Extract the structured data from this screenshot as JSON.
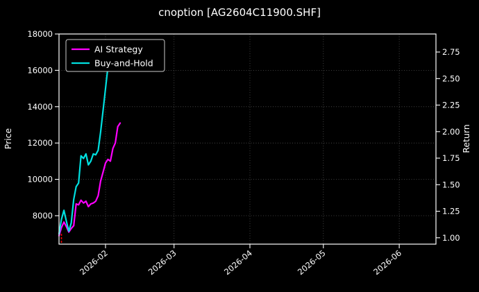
{
  "page": {
    "background": "#000000",
    "text_color": "#ffffff",
    "spine_color": "#ffffff",
    "grid_color": "#777777"
  },
  "chart_data": {
    "type": "line",
    "title": "cnoption [AG2604C11900.SHF]",
    "ylabel_left": "Price",
    "ylabel_right": "Return",
    "x_range": [
      "2026-01-13",
      "2026-06-16"
    ],
    "ylim_left": [
      6436,
      18000
    ],
    "ylim_right": [
      0.94,
      2.92
    ],
    "yticks_left": [
      8000,
      10000,
      12000,
      14000,
      16000,
      18000
    ],
    "yticks_right": [
      1.0,
      1.25,
      1.5,
      1.75,
      2.0,
      2.25,
      2.5,
      2.75
    ],
    "xticks": [
      {
        "date": "2026-02-01",
        "label": "2026-02"
      },
      {
        "date": "2026-03-01",
        "label": "2026-03"
      },
      {
        "date": "2026-04-01",
        "label": "2026-04"
      },
      {
        "date": "2026-05-01",
        "label": "2026-05"
      },
      {
        "date": "2026-06-01",
        "label": "2026-06"
      }
    ],
    "grid": true,
    "legend_position": "upper-left",
    "series": [
      {
        "name": "AI Strategy",
        "color": "#ff00ff",
        "points": [
          [
            "2026-01-13",
            6900
          ],
          [
            "2026-01-14",
            7350
          ],
          [
            "2026-01-15",
            7650
          ],
          [
            "2026-01-16",
            7400
          ],
          [
            "2026-01-17",
            7100
          ],
          [
            "2026-01-18",
            7300
          ],
          [
            "2026-01-19",
            7450
          ],
          [
            "2026-01-20",
            8650
          ],
          [
            "2026-01-21",
            8600
          ],
          [
            "2026-01-22",
            8850
          ],
          [
            "2026-01-23",
            8700
          ],
          [
            "2026-01-24",
            8800
          ],
          [
            "2026-01-25",
            8500
          ],
          [
            "2026-01-26",
            8650
          ],
          [
            "2026-01-27",
            8700
          ],
          [
            "2026-01-28",
            8800
          ],
          [
            "2026-01-29",
            9100
          ],
          [
            "2026-01-30",
            9900
          ],
          [
            "2026-01-31",
            10400
          ],
          [
            "2026-02-01",
            10900
          ],
          [
            "2026-02-02",
            11100
          ],
          [
            "2026-02-03",
            11000
          ],
          [
            "2026-02-04",
            11700
          ],
          [
            "2026-02-05",
            12000
          ],
          [
            "2026-02-06",
            12900
          ],
          [
            "2026-02-07",
            13100
          ]
        ]
      },
      {
        "name": "Buy-and-Hold",
        "color": "#00e0e0",
        "points": [
          [
            "2026-01-13",
            7000
          ],
          [
            "2026-01-14",
            7800
          ],
          [
            "2026-01-15",
            8300
          ],
          [
            "2026-01-16",
            7700
          ],
          [
            "2026-01-17",
            7150
          ],
          [
            "2026-01-18",
            7600
          ],
          [
            "2026-01-19",
            8900
          ],
          [
            "2026-01-20",
            9600
          ],
          [
            "2026-01-21",
            9800
          ],
          [
            "2026-01-22",
            11300
          ],
          [
            "2026-01-23",
            11150
          ],
          [
            "2026-01-24",
            11400
          ],
          [
            "2026-01-25",
            10800
          ],
          [
            "2026-01-26",
            11000
          ],
          [
            "2026-01-27",
            11400
          ],
          [
            "2026-01-28",
            11350
          ],
          [
            "2026-01-29",
            11600
          ],
          [
            "2026-01-30",
            12600
          ],
          [
            "2026-01-31",
            13800
          ],
          [
            "2026-02-01",
            15000
          ],
          [
            "2026-02-02",
            16200
          ],
          [
            "2026-02-03",
            17000
          ],
          [
            "2026-02-04",
            17500
          ]
        ]
      }
    ],
    "annotations": [
      {
        "type": "entry-marker",
        "date": "2026-01-14",
        "color": "#ff0000"
      }
    ]
  }
}
